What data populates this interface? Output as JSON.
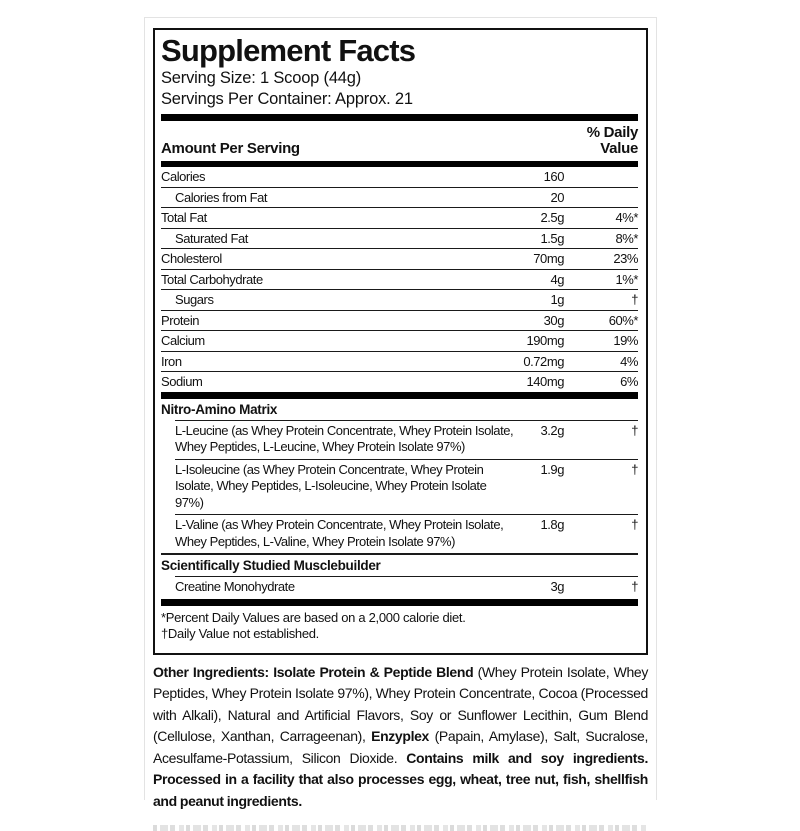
{
  "colors": {
    "text": "#111111",
    "rule_line": "#1a1a1a",
    "thick_bar": "#000000",
    "frame_border": "#e3e3e3",
    "cropped_text_gray": "#c6c6c6"
  },
  "supplement_facts": {
    "title": "Supplement Facts",
    "serving_size": "Serving Size: 1 Scoop (44g)",
    "servings_per_container": "Servings Per Container: Approx. 21",
    "column_header": {
      "left": "Amount Per Serving",
      "right_line1": "% Daily",
      "right_line2": "Value"
    },
    "nutrients": [
      {
        "name": "Calories",
        "amount": "160",
        "dv": ""
      },
      {
        "name": "Calories from Fat",
        "amount": "20",
        "dv": ""
      },
      {
        "name": "Total Fat",
        "amount": "2.5g",
        "dv": "4%*"
      },
      {
        "name": "Saturated Fat",
        "amount": "1.5g",
        "dv": "8%*"
      },
      {
        "name": "Cholesterol",
        "amount": "70mg",
        "dv": "23%"
      },
      {
        "name": "Total Carbohydrate",
        "amount": "4g",
        "dv": "1%*"
      },
      {
        "name": "Sugars",
        "amount": "1g",
        "dv": "†"
      },
      {
        "name": "Protein",
        "amount": "30g",
        "dv": "60%*"
      },
      {
        "name": "Calcium",
        "amount": "190mg",
        "dv": "19%"
      },
      {
        "name": "Iron",
        "amount": "0.72mg",
        "dv": "4%"
      },
      {
        "name": "Sodium",
        "amount": "140mg",
        "dv": "6%"
      }
    ],
    "sections": [
      {
        "heading": "Nitro-Amino Matrix",
        "rows": [
          {
            "name": "L-Leucine (as Whey Protein Concentrate, Whey Protein Isolate, Whey Peptides, L-Leucine, Whey Protein Isolate 97%)",
            "amount": "3.2g",
            "dv": "†"
          },
          {
            "name": "L-Isoleucine (as Whey Protein Concentrate, Whey Protein Isolate, Whey Peptides, L-Isoleucine, Whey Protein Isolate 97%)",
            "amount": "1.9g",
            "dv": "†"
          },
          {
            "name": "L-Valine (as Whey Protein Concentrate, Whey Protein Isolate, Whey Peptides, L-Valine, Whey Protein Isolate 97%)",
            "amount": "1.8g",
            "dv": "†"
          }
        ]
      },
      {
        "heading": "Scientifically Studied Musclebuilder",
        "rows": [
          {
            "name": "Creatine Monohydrate",
            "amount": "3g",
            "dv": "†"
          }
        ]
      }
    ],
    "footnotes": [
      "*Percent Daily Values are based on a 2,000 calorie diet.",
      "†Daily Value not established."
    ]
  },
  "other_ingredients": {
    "segments": [
      {
        "text": "Other Ingredients: Isolate Protein & Peptide Blend ",
        "bold": true
      },
      {
        "text": "(Whey Protein Isolate, Whey Peptides, Whey Protein Isolate 97%), Whey Protein Concentrate, Cocoa (Processed with Alkali), Natural and Artificial Flavors, Soy or Sunflower Lecithin, Gum Blend (Cellulose, Xanthan, Carrageenan), ",
        "bold": false
      },
      {
        "text": "Enzyplex ",
        "bold": true
      },
      {
        "text": "(Papain, Amylase), Salt, Sucralose, Acesulfame-Potassium, Silicon Dioxide. ",
        "bold": false
      },
      {
        "text": "Contains milk and soy ingredients. Processed in a facility that also processes egg, wheat, tree nut, fish, shellfish and peanut ingredients.",
        "bold": true
      }
    ]
  }
}
